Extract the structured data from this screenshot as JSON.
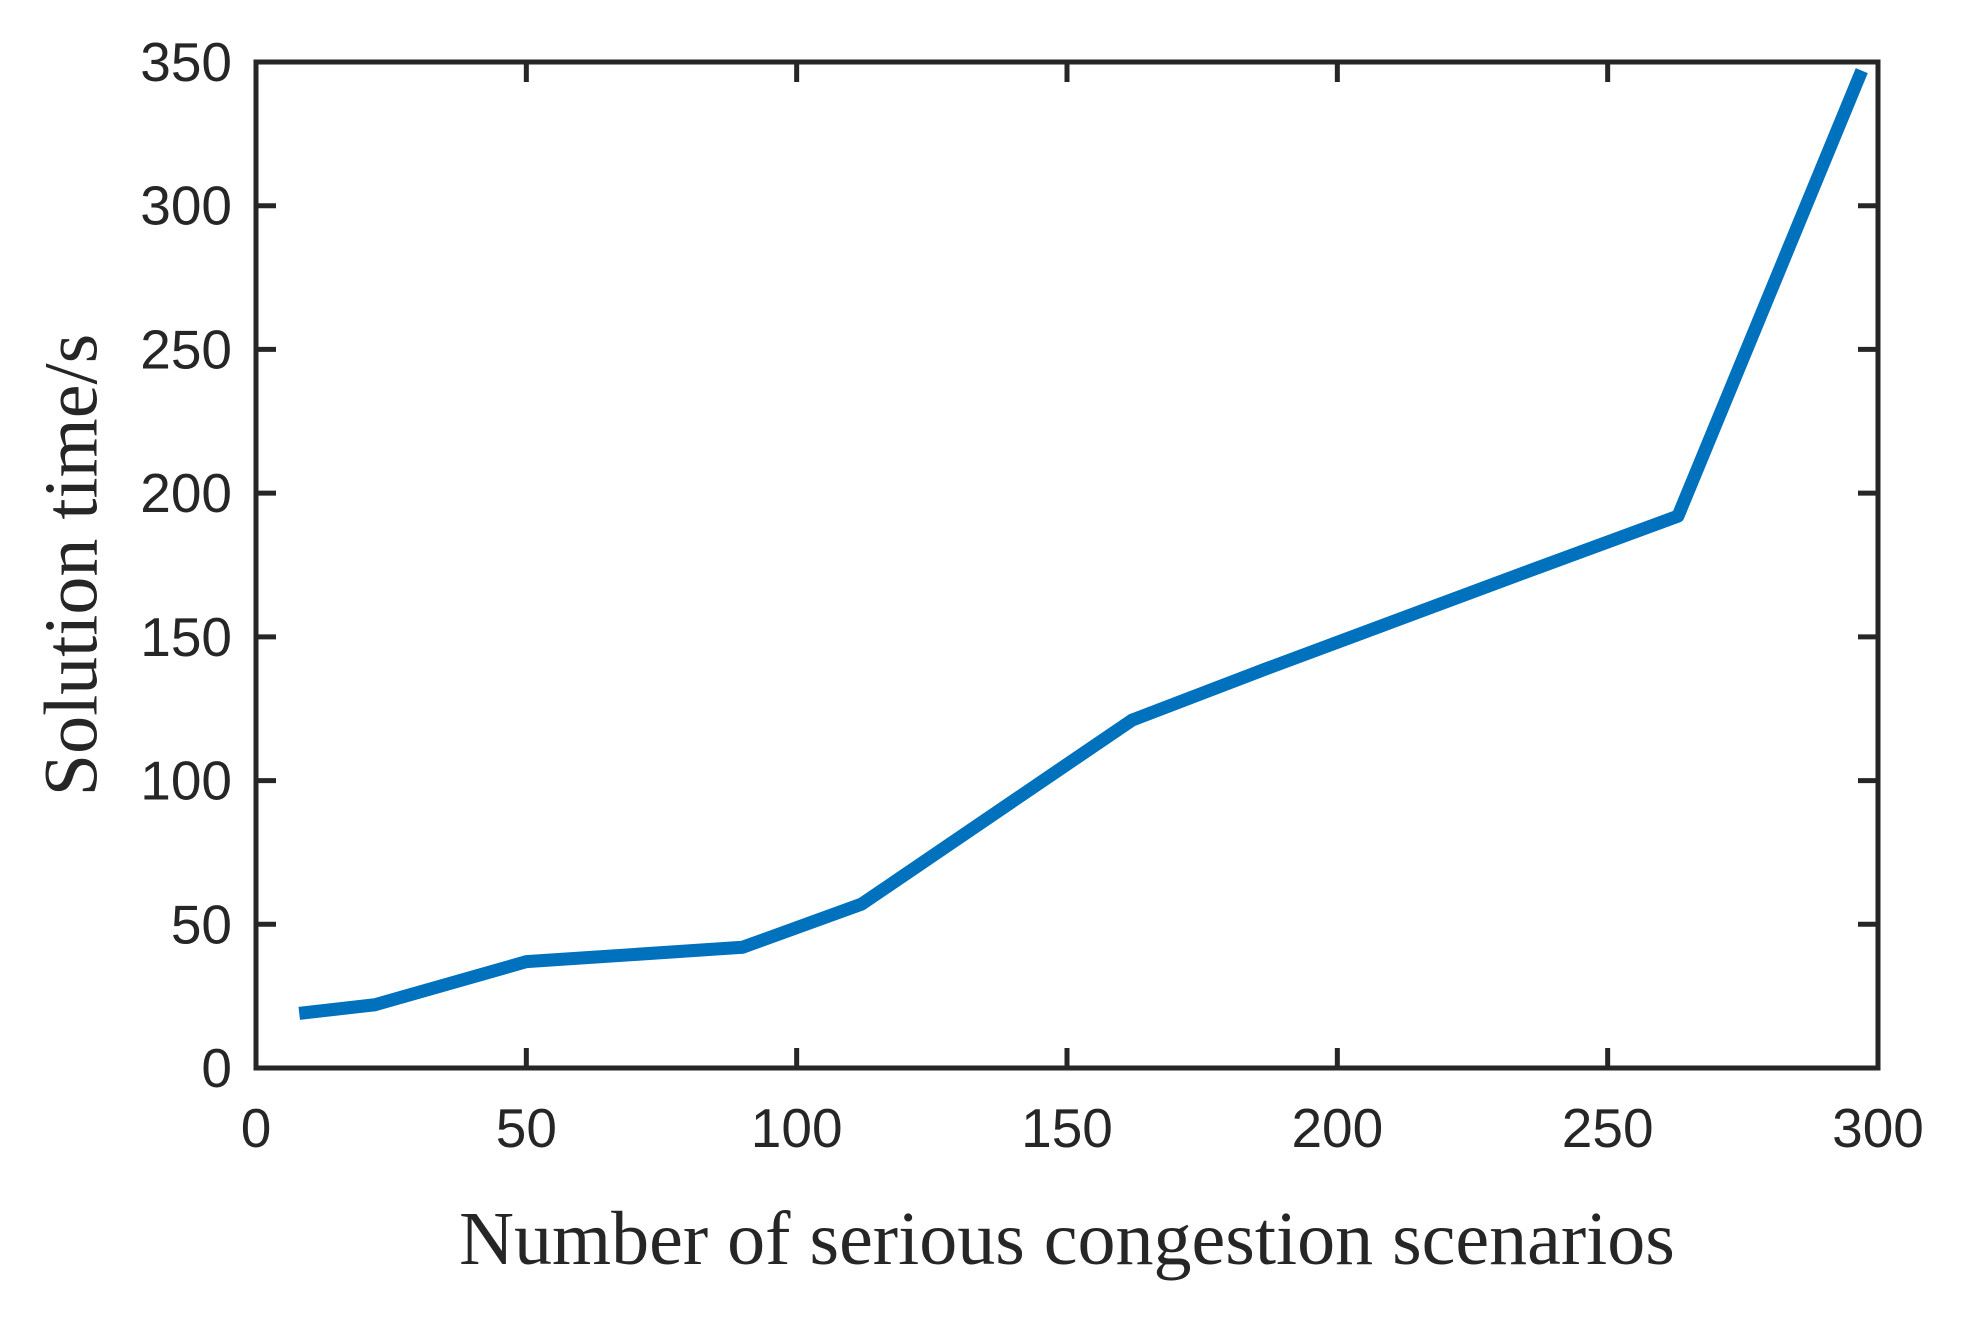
{
  "figure": {
    "background": "#ffffff",
    "axis_color": "#262626",
    "tick_font_size": 55,
    "label_font_size": 76
  },
  "chart_data": {
    "type": "line",
    "title": "",
    "xlabel": "Number of serious congestion scenarios",
    "ylabel": "Solution time/s",
    "x": [
      8,
      22,
      50,
      90,
      112,
      162,
      187,
      237,
      263,
      297
    ],
    "y": [
      19,
      22,
      37,
      42,
      57,
      121,
      139,
      174,
      192,
      347
    ],
    "xlim": [
      0,
      300
    ],
    "ylim": [
      0,
      350
    ],
    "xticks": [
      0,
      50,
      100,
      150,
      200,
      250,
      300
    ],
    "yticks": [
      0,
      50,
      100,
      150,
      200,
      250,
      300,
      350
    ],
    "grid": false,
    "legend": "none",
    "box": true,
    "tick_direction": "in",
    "series": [
      {
        "name": "solution-time",
        "color": "#0072BD",
        "line_width": 13
      }
    ]
  }
}
